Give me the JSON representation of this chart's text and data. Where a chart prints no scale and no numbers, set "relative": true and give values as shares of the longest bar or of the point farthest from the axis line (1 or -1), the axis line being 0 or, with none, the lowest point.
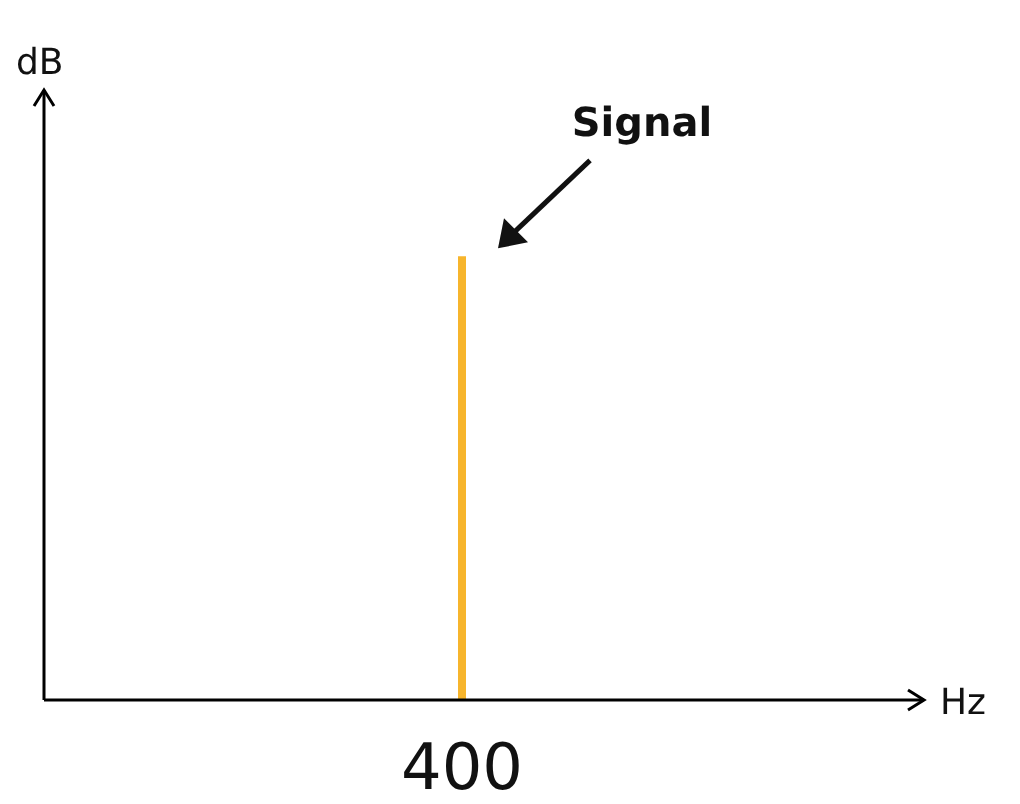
{
  "chart_data": {
    "type": "bar",
    "categories": [
      "400"
    ],
    "values": [
      1
    ],
    "color": "#f7b52c",
    "relative": true,
    "xlabel": "Hz",
    "ylabel": "dB",
    "annotations": [
      "Signal"
    ]
  }
}
